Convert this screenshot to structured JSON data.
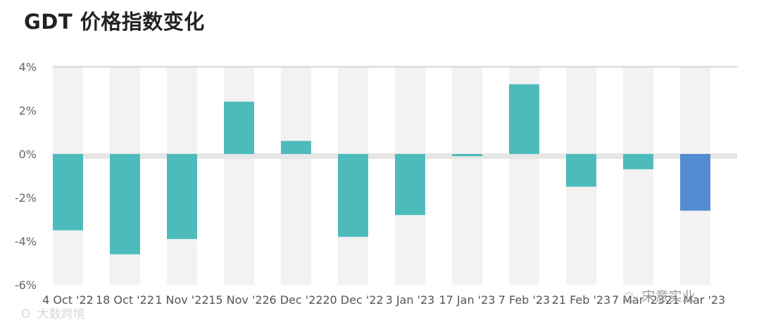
{
  "title": "GDT 价格指数变化",
  "watermarks": {
    "left": "大数跨境",
    "right": "宋意实业"
  },
  "chart_data": {
    "type": "bar",
    "title": "GDT 价格指数变化",
    "xlabel": "",
    "ylabel": "",
    "ylim": [
      -6,
      4
    ],
    "yticks": [
      4,
      2,
      0,
      -2,
      -4,
      -6
    ],
    "ytick_labels": [
      "4%",
      "2%",
      "0%",
      "-2%",
      "-4%",
      "-6%"
    ],
    "categories": [
      "4 Oct '22",
      "18 Oct '22",
      "1 Nov '22",
      "15 Nov '22",
      "6 Dec '22",
      "20 Dec '22",
      "3 Jan '23",
      "17 Jan '23",
      "7 Feb '23",
      "21 Feb '23",
      "7 Mar '23",
      "21 Mar '23"
    ],
    "values": [
      -3.5,
      -4.6,
      -3.9,
      2.4,
      0.6,
      -3.8,
      -2.8,
      -0.1,
      3.2,
      -1.5,
      -0.7,
      -2.6
    ],
    "colors": [
      "#4dbbbb",
      "#4dbbbb",
      "#4dbbbb",
      "#4dbbbb",
      "#4dbbbb",
      "#4dbbbb",
      "#4dbbbb",
      "#4dbbbb",
      "#4dbbbb",
      "#4dbbbb",
      "#4dbbbb",
      "#528bd1"
    ],
    "grid": "alternating-columns",
    "legend": "none"
  }
}
